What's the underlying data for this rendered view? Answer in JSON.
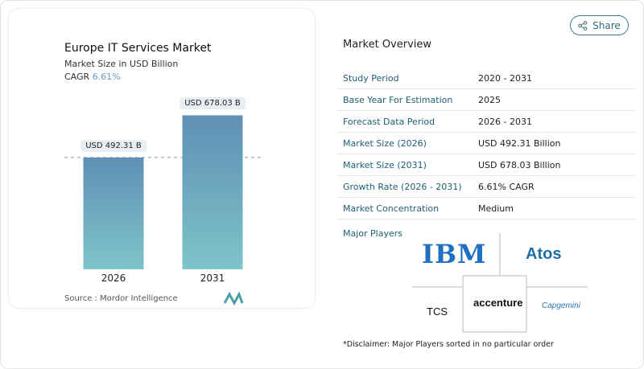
{
  "header": {
    "share_label": "Share",
    "share_icon": "share-icon"
  },
  "chart_data": {
    "type": "bar",
    "title": "Europe IT Services Market",
    "subtitle": "Market Size in USD Billion",
    "cagr_label": "CAGR",
    "cagr_value": "6.61%",
    "categories": [
      "2026",
      "2031"
    ],
    "values": [
      492.31,
      678.03
    ],
    "data_labels": [
      "USD 492.31 B",
      "USD 678.03 B"
    ],
    "bar_color_top": "#5f8fb5",
    "bar_color_bottom": "#7ec4c8",
    "reference_line": "dashed at 2026 value",
    "grid": false
  },
  "source": "Source :  Mordor Intelligence",
  "overview": {
    "title": "Market Overview",
    "rows": [
      {
        "k": "Study Period",
        "v": "2020 - 2031"
      },
      {
        "k": "Base Year For Estimation",
        "v": "2025"
      },
      {
        "k": "Forecast Data Period",
        "v": "2026 - 2031"
      },
      {
        "k": "Market Size (2026)",
        "v": "USD 492.31 Billion"
      },
      {
        "k": "Market Size (2031)",
        "v": "USD 678.03 Billion"
      },
      {
        "k": "Growth Rate (2026 - 2031)",
        "v": "6.61% CAGR"
      },
      {
        "k": "Market Concentration",
        "v": "Medium"
      }
    ],
    "players_title": "Major Players",
    "players": [
      "IBM",
      "Atos",
      "TCS",
      "accenture",
      "Capgemini"
    ]
  },
  "disclaimer": "*Disclaimer: Major Players sorted in no particular order"
}
